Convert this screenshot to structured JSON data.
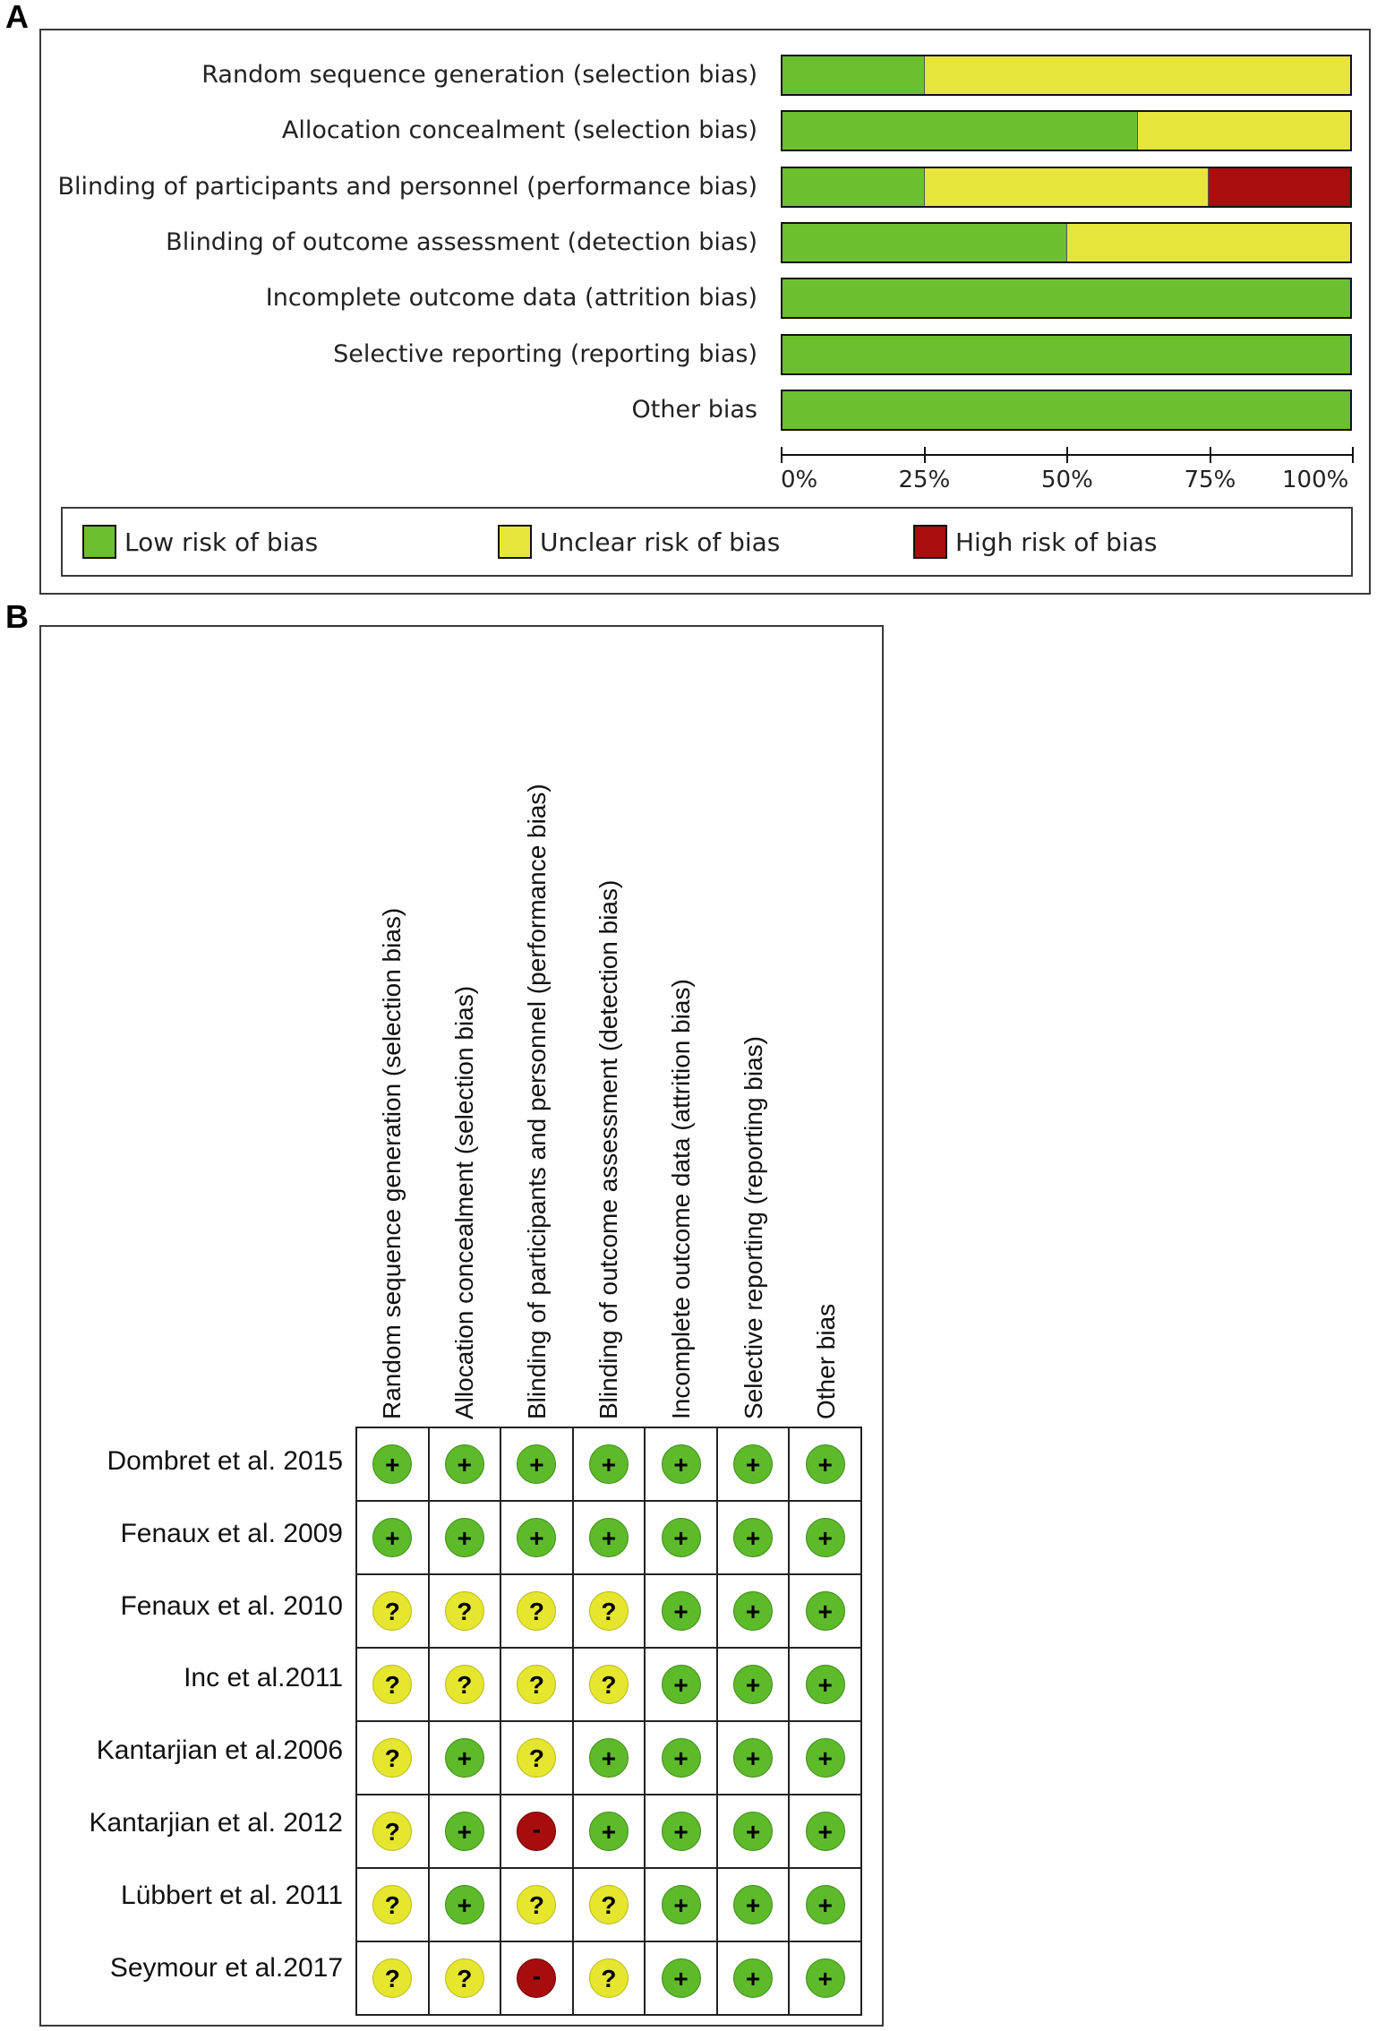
{
  "panel_a_letter": "A",
  "panel_b_letter": "B",
  "colors": {
    "low": "#6cbf2e",
    "unclear": "#e6e63a",
    "high": "#a90d0d"
  },
  "chart_data": [
    {
      "type": "bar",
      "orientation": "horizontal-stacked-percent",
      "categories": [
        "Random sequence generation (selection bias)",
        "Allocation concealment (selection bias)",
        "Blinding of participants and personnel (performance bias)",
        "Blinding of outcome assessment (detection bias)",
        "Incomplete outcome data (attrition bias)",
        "Selective reporting (reporting bias)",
        "Other bias"
      ],
      "series": [
        {
          "name": "Low risk of bias",
          "key": "low",
          "values": [
            25,
            62.5,
            25,
            50,
            100,
            100,
            100
          ]
        },
        {
          "name": "Unclear risk of bias",
          "key": "unclear",
          "values": [
            75,
            37.5,
            50,
            50,
            0,
            0,
            0
          ]
        },
        {
          "name": "High risk of bias",
          "key": "high",
          "values": [
            0,
            0,
            25,
            0,
            0,
            0,
            0
          ]
        }
      ],
      "xlim": [
        0,
        100
      ],
      "xticks": [
        "0%",
        "25%",
        "50%",
        "75%",
        "100%"
      ],
      "legend_position": "bottom"
    },
    {
      "type": "table",
      "columns": [
        "Random sequence generation (selection bias)",
        "Allocation concealment (selection bias)",
        "Blinding of participants and personnel (performance bias)",
        "Blinding of outcome assessment (detection bias)",
        "Incomplete outcome data (attrition bias)",
        "Selective reporting (reporting bias)",
        "Other bias"
      ],
      "rows": [
        {
          "study": "Dombret et al. 2015",
          "ratings": [
            "low",
            "low",
            "low",
            "low",
            "low",
            "low",
            "low"
          ]
        },
        {
          "study": "Fenaux et al. 2009",
          "ratings": [
            "low",
            "low",
            "low",
            "low",
            "low",
            "low",
            "low"
          ]
        },
        {
          "study": "Fenaux et al. 2010",
          "ratings": [
            "unclear",
            "unclear",
            "unclear",
            "unclear",
            "low",
            "low",
            "low"
          ]
        },
        {
          "study": "Inc et al.2011",
          "ratings": [
            "unclear",
            "unclear",
            "unclear",
            "unclear",
            "low",
            "low",
            "low"
          ]
        },
        {
          "study": "Kantarjian et al.2006",
          "ratings": [
            "unclear",
            "low",
            "unclear",
            "low",
            "low",
            "low",
            "low"
          ]
        },
        {
          "study": "Kantarjian et al. 2012",
          "ratings": [
            "unclear",
            "low",
            "high",
            "low",
            "low",
            "low",
            "low"
          ]
        },
        {
          "study": "Lübbert et al. 2011",
          "ratings": [
            "unclear",
            "low",
            "unclear",
            "unclear",
            "low",
            "low",
            "low"
          ]
        },
        {
          "study": "Seymour et al.2017",
          "ratings": [
            "unclear",
            "unclear",
            "high",
            "unclear",
            "low",
            "low",
            "low"
          ]
        }
      ],
      "symbols": {
        "low": "+",
        "unclear": "?",
        "high": "-"
      }
    }
  ]
}
